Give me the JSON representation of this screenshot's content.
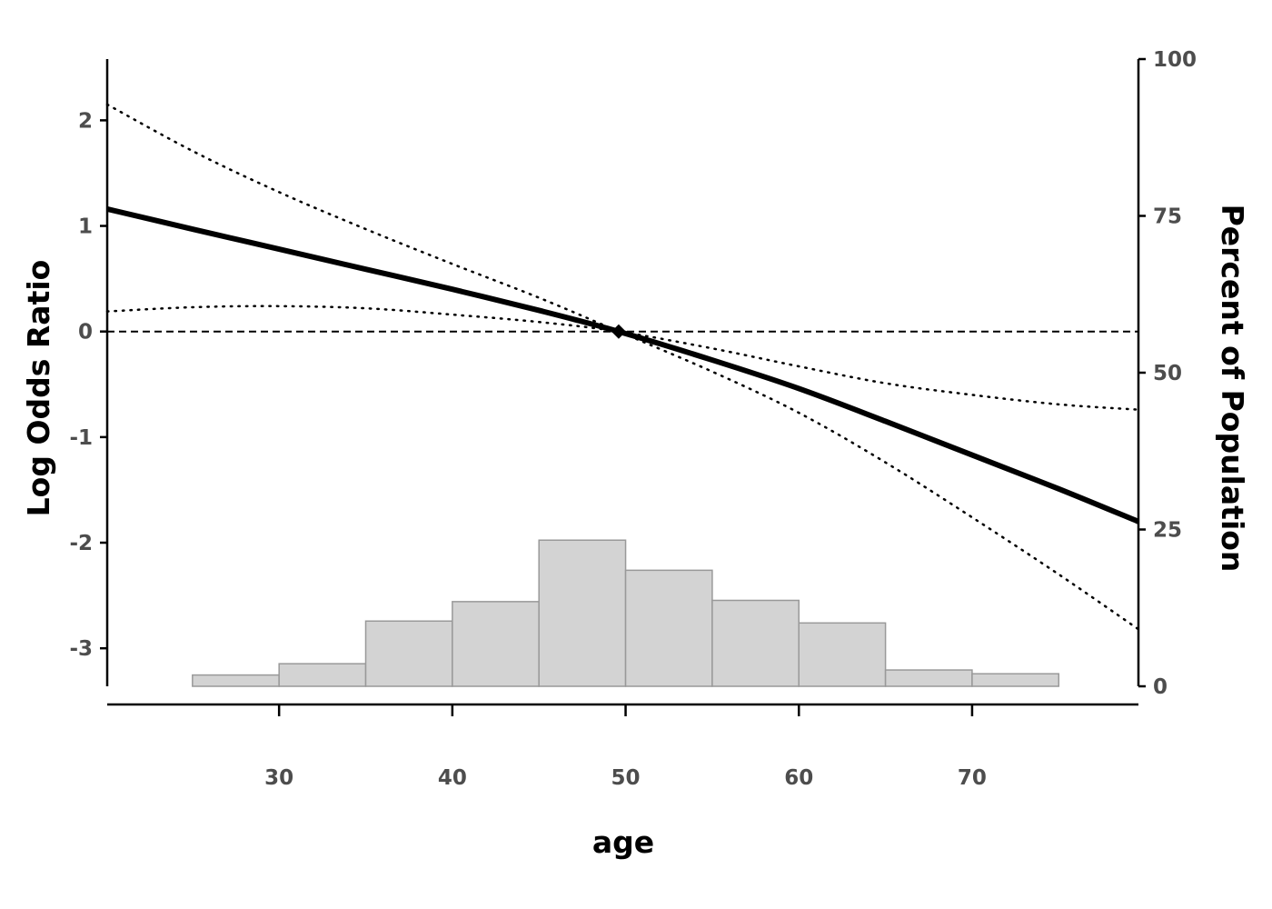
{
  "chart_data": {
    "type": "line",
    "xlabel": "age",
    "ylabel": "Log Odds Ratio",
    "y2label": "Percent of Population",
    "xlim": [
      20.08,
      79.6
    ],
    "ylim": [
      -3.36,
      2.58
    ],
    "y2lim": [
      0,
      100
    ],
    "x_ticks": [
      30,
      40,
      50,
      60,
      70
    ],
    "y_ticks": [
      -3,
      -2,
      -1,
      0,
      1,
      2
    ],
    "y2_ticks": [
      0,
      25,
      50,
      75,
      100
    ],
    "reference_point": {
      "x": 49.6,
      "y": 0
    },
    "series": [
      {
        "role": "estimate",
        "style": "solid",
        "x": [
          20.08,
          25,
          30,
          35,
          40,
          45,
          49.6,
          55,
          60,
          65,
          70,
          75,
          79.6
        ],
        "y": [
          1.16,
          0.97,
          0.78,
          0.59,
          0.4,
          0.2,
          0,
          -0.27,
          -0.54,
          -0.85,
          -1.17,
          -1.49,
          -1.8
        ]
      },
      {
        "role": "upper_bound",
        "style": "dotted",
        "x": [
          20.08,
          25,
          30,
          35,
          40,
          45,
          49.6,
          55,
          60,
          65,
          70,
          75,
          79.6
        ],
        "y": [
          0.19,
          0.23,
          0.24,
          0.22,
          0.16,
          0.09,
          0,
          -0.16,
          -0.33,
          -0.49,
          -0.6,
          -0.69,
          -0.74
        ]
      },
      {
        "role": "lower_bound",
        "style": "dotted",
        "x": [
          20.08,
          25,
          30,
          35,
          40,
          45,
          49.6,
          55,
          60,
          65,
          70,
          75,
          79.6
        ],
        "y": [
          2.15,
          1.71,
          1.32,
          0.97,
          0.64,
          0.32,
          0,
          -0.38,
          -0.77,
          -1.24,
          -1.76,
          -2.3,
          -2.82
        ]
      },
      {
        "role": "reference",
        "style": "dashed",
        "x": [
          20.08,
          79.6
        ],
        "y": [
          0,
          0
        ]
      }
    ],
    "histogram": {
      "bin_edges": [
        25,
        30,
        35,
        40,
        45,
        50,
        55,
        60,
        65,
        70,
        75
      ],
      "percent": [
        1.8,
        3.6,
        10.4,
        13.5,
        23.3,
        18.5,
        13.7,
        10.1,
        2.6,
        2
      ]
    },
    "colors": {
      "line": "#000000",
      "histogram_fill": "#d3d3d3",
      "histogram_edge": "#999999",
      "tick_label": "#4d4d4d"
    }
  }
}
